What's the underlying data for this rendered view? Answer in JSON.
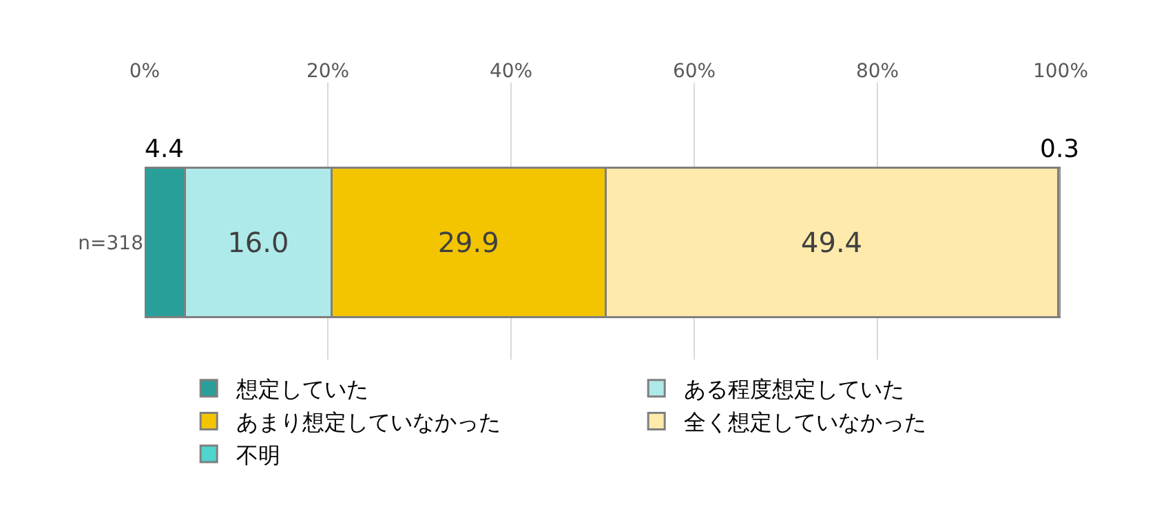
{
  "chart_data": {
    "type": "bar",
    "orientation": "horizontal",
    "stacked": true,
    "categories": [
      "n=318"
    ],
    "series": [
      {
        "name": "想定していた",
        "color": "#28a099",
        "values": [
          4.4
        ],
        "value_labels": [
          "4.4"
        ]
      },
      {
        "name": "ある程度想定していた",
        "color": "#aeeae9",
        "values": [
          16.0
        ],
        "value_labels": [
          "16.0"
        ]
      },
      {
        "name": "あまり想定していなかった",
        "color": "#f2c500",
        "values": [
          29.9
        ],
        "value_labels": [
          "29.9"
        ]
      },
      {
        "name": "全く想定していなかった",
        "color": "#feeaab",
        "values": [
          49.4
        ],
        "value_labels": [
          "49.4"
        ]
      },
      {
        "name": "不明",
        "color": "#4fd4ce",
        "values": [
          0.3
        ],
        "value_labels": [
          "0.3"
        ]
      }
    ],
    "xlim": [
      0,
      100
    ],
    "xticks": [
      {
        "value": 0,
        "label": "0%"
      },
      {
        "value": 20,
        "label": "20%"
      },
      {
        "value": 40,
        "label": "40%"
      },
      {
        "value": 60,
        "label": "60%"
      },
      {
        "value": 80,
        "label": "80%"
      },
      {
        "value": 100,
        "label": "100%"
      }
    ],
    "grid": "x",
    "legend": "bottom"
  }
}
